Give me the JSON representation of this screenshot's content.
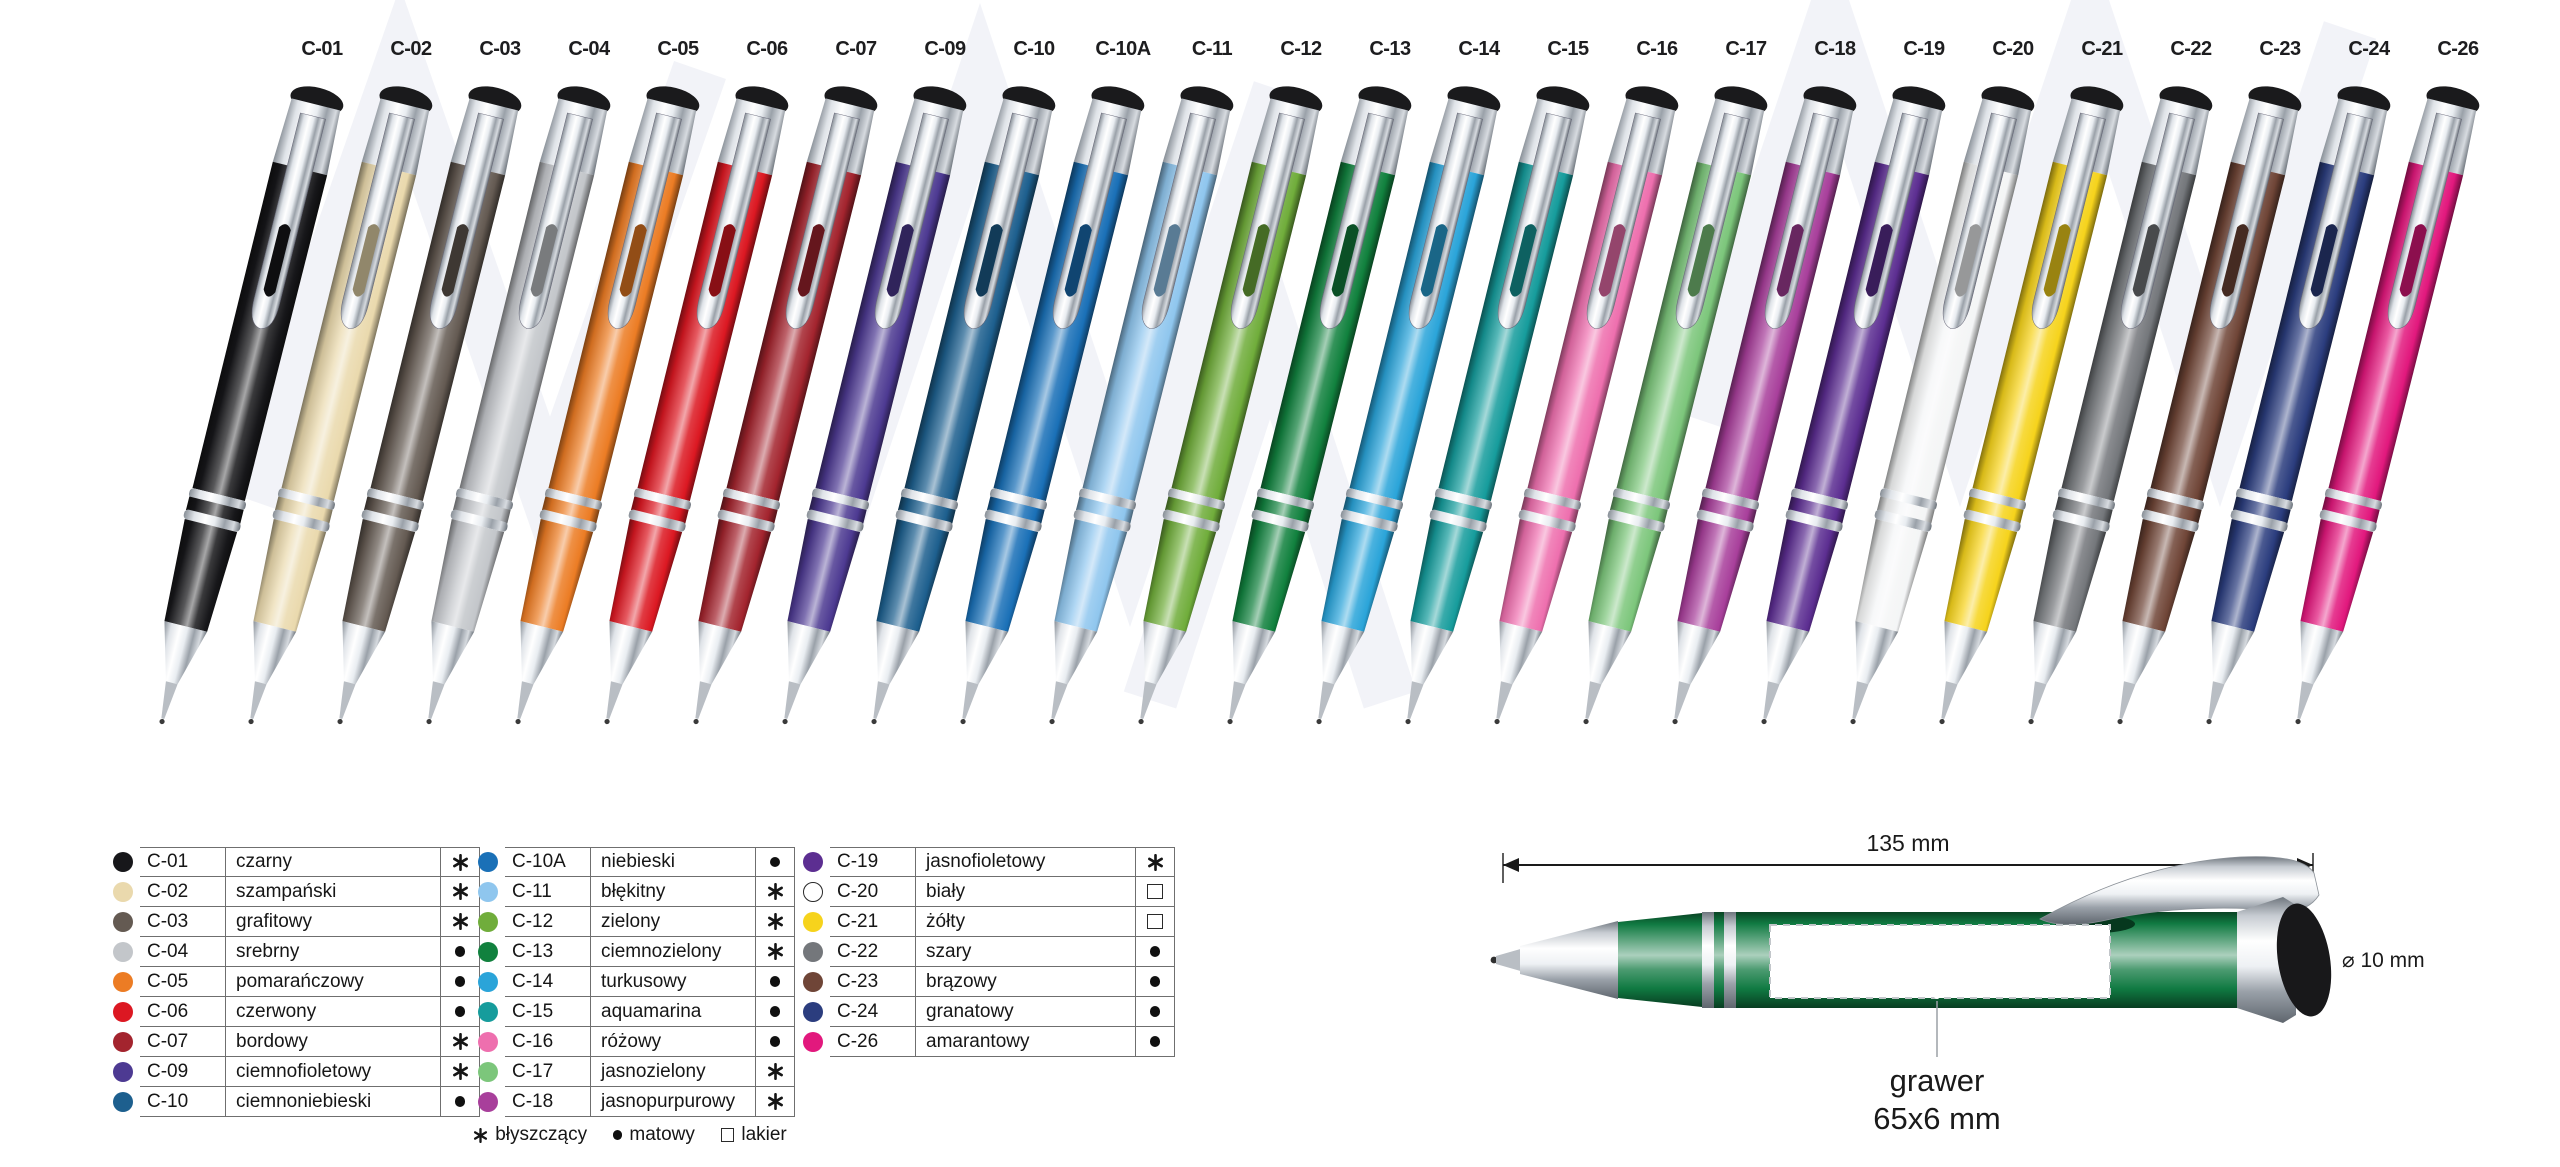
{
  "pens": [
    {
      "code": "C-01",
      "name": "czarny",
      "symbol": "✱",
      "color": "#17171a"
    },
    {
      "code": "C-02",
      "name": "szampański",
      "symbol": "✱",
      "color": "#ead9ad"
    },
    {
      "code": "C-03",
      "name": "grafitowy",
      "symbol": "✱",
      "color": "#645a52"
    },
    {
      "code": "C-04",
      "name": "srebrny",
      "symbol": "●",
      "color": "#c3c6ca"
    },
    {
      "code": "C-05",
      "name": "pomarańczowy",
      "symbol": "●",
      "color": "#ec7c24"
    },
    {
      "code": "C-06",
      "name": "czerwony",
      "symbol": "●",
      "color": "#dc1822"
    },
    {
      "code": "C-07",
      "name": "bordowy",
      "symbol": "✱",
      "color": "#a3242e"
    },
    {
      "code": "C-09",
      "name": "ciemnofioletowy",
      "symbol": "✱",
      "color": "#4d3a92"
    },
    {
      "code": "C-10",
      "name": "ciemnoniebieski",
      "symbol": "●",
      "color": "#1d5f8e"
    },
    {
      "code": "C-10A",
      "name": "niebieski",
      "symbol": "●",
      "color": "#1a70b7"
    },
    {
      "code": "C-11",
      "name": "błękitny",
      "symbol": "✱",
      "color": "#8fc6ee"
    },
    {
      "code": "C-12",
      "name": "zielony",
      "symbol": "✱",
      "color": "#70ad3b"
    },
    {
      "code": "C-13",
      "name": "ciemnozielony",
      "symbol": "✱",
      "color": "#11813e"
    },
    {
      "code": "C-14",
      "name": "turkusowy",
      "symbol": "●",
      "color": "#2aa4d9"
    },
    {
      "code": "C-15",
      "name": "aquamarina",
      "symbol": "●",
      "color": "#169c9c"
    },
    {
      "code": "C-16",
      "name": "różowy",
      "symbol": "●",
      "color": "#ee6fae"
    },
    {
      "code": "C-17",
      "name": "jasnozielony",
      "symbol": "✱",
      "color": "#7cc67b"
    },
    {
      "code": "C-18",
      "name": "jasnopurpurowy",
      "symbol": "✱",
      "color": "#a83f9b"
    },
    {
      "code": "C-19",
      "name": "jasnofioletowy",
      "symbol": "✱",
      "color": "#5c2e91"
    },
    {
      "code": "C-20",
      "name": "biały",
      "symbol": "□",
      "color": "#f4f5f6"
    },
    {
      "code": "C-21",
      "name": "żółty",
      "symbol": "□",
      "color": "#f6d31c"
    },
    {
      "code": "C-22",
      "name": "szary",
      "symbol": "●",
      "color": "#74777b"
    },
    {
      "code": "C-23",
      "name": "brązowy",
      "symbol": "●",
      "color": "#6f4537"
    },
    {
      "code": "C-24",
      "name": "granatowy",
      "symbol": "●",
      "color": "#2b3d7e"
    },
    {
      "code": "C-26",
      "name": "amarantowy",
      "symbol": "●",
      "color": "#e2187d"
    }
  ],
  "table_splits": [
    9,
    9,
    7
  ],
  "finish_legend": {
    "items": [
      {
        "symbol": "✱",
        "label": "błyszczący"
      },
      {
        "symbol": "●",
        "label": "matowy"
      },
      {
        "symbol": "□",
        "label": "lakier"
      }
    ]
  },
  "diagram": {
    "length": "135 mm",
    "diameter": "⌀ 10 mm",
    "engraving_line1": "grawer",
    "engraving_line2": "65x6 mm",
    "pen_color": "#107a42"
  }
}
